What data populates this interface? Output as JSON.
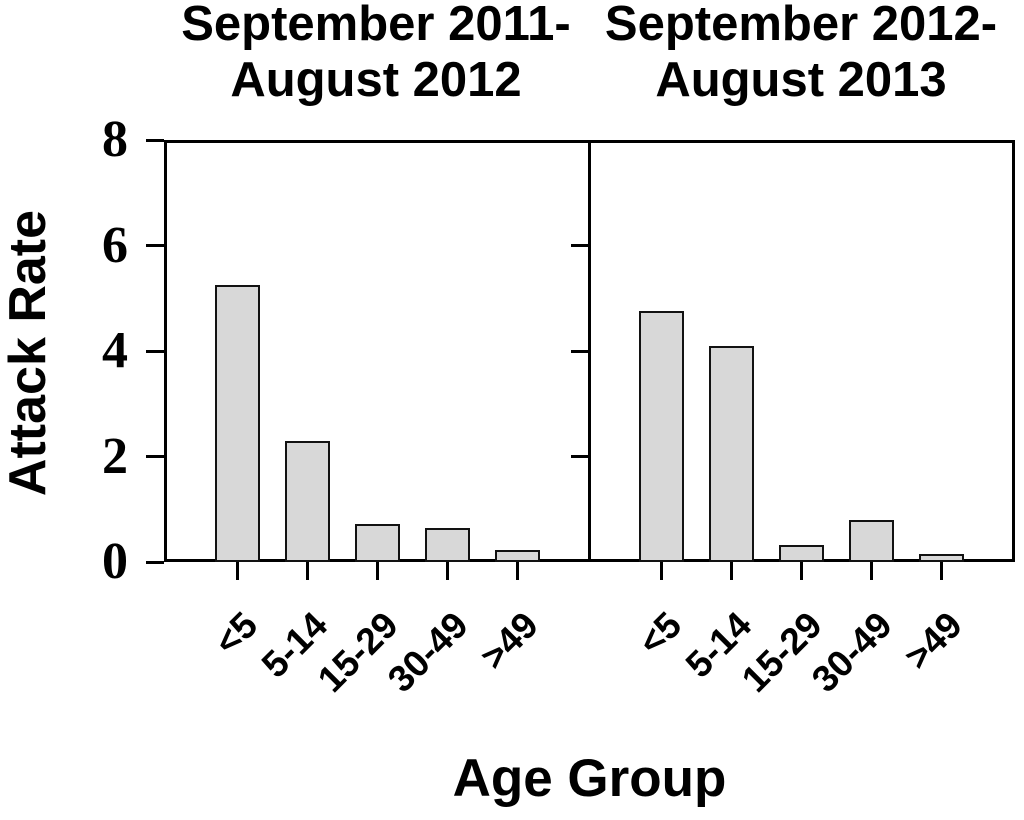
{
  "chart_data": {
    "type": "bar",
    "ylabel": "Attack Rate",
    "xlabel": "Age Group",
    "categories": [
      "<5",
      "5-14",
      "15-29",
      "30-49",
      ">49"
    ],
    "yticks": [
      0,
      2,
      4,
      6,
      8
    ],
    "ylim": [
      0,
      8
    ],
    "grid": false,
    "legend": null,
    "panels": [
      {
        "title_line1": "September 2011-",
        "title_line2": "August 2012",
        "values": [
          5.25,
          2.3,
          0.72,
          0.65,
          0.22
        ]
      },
      {
        "title_line1": "September 2012-",
        "title_line2": "August 2013",
        "values": [
          4.75,
          4.1,
          0.33,
          0.8,
          0.16
        ]
      }
    ],
    "colors": {
      "bar_fill": "#d8d8d8",
      "bar_stroke": "#121212",
      "axis": "#000000",
      "background": "#ffffff",
      "text": "#000000"
    }
  }
}
